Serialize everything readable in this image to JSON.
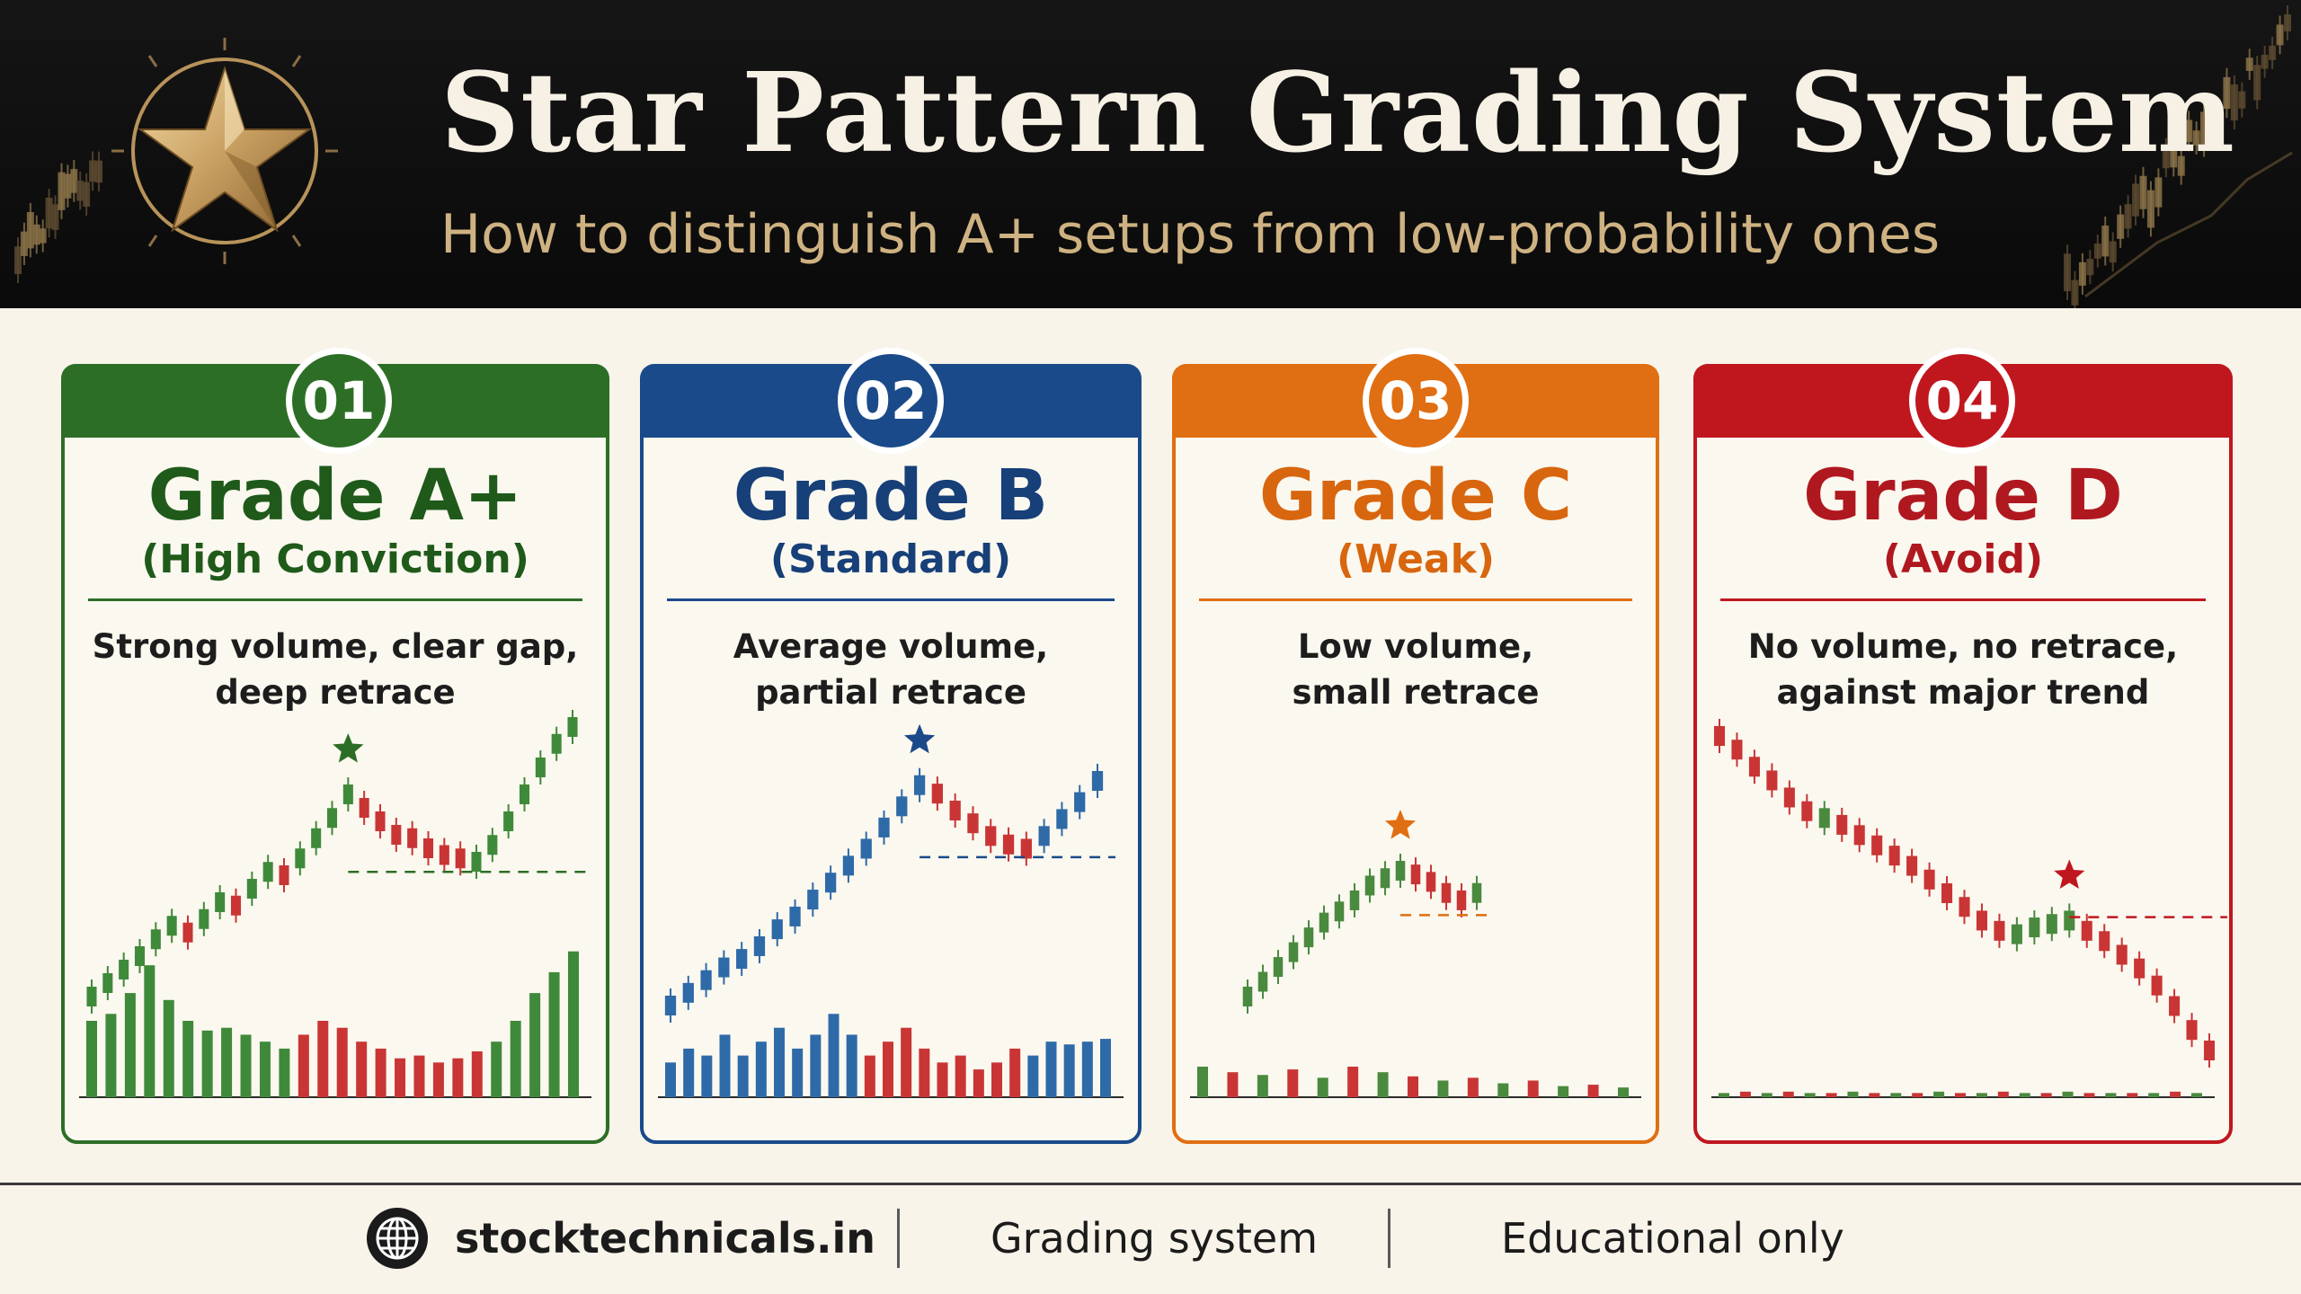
{
  "header": {
    "title": "Star Pattern Grading System",
    "subtitle": "How to distinguish A+ setups from low-probability ones",
    "emblem_icon": "gold-star-icon",
    "accent": "#cfb282"
  },
  "cards": [
    {
      "number": "01",
      "grade": "Grade A+",
      "subtitle": "(High Conviction)",
      "description": [
        "Strong volume, clear gap,",
        "deep retrace"
      ],
      "color": "#2d6e26",
      "title_color": "#1f5a1a",
      "chart": {
        "up_color": "#3f8a3a",
        "down_color": "#c93535",
        "star_color": "#2d6e26",
        "prices": [
          10,
          14,
          18,
          22,
          27,
          31,
          29,
          33,
          38,
          37,
          42,
          47,
          46,
          51,
          57,
          63,
          70,
          66,
          62,
          58,
          57,
          54,
          52,
          51,
          50,
          55,
          62,
          70,
          78,
          85,
          90
        ],
        "dirs": [
          1,
          1,
          1,
          1,
          1,
          1,
          -1,
          1,
          1,
          -1,
          1,
          1,
          -1,
          1,
          1,
          1,
          1,
          -1,
          -1,
          -1,
          -1,
          -1,
          -1,
          -1,
          1,
          1,
          1,
          1,
          1,
          1,
          1
        ],
        "star_index": 16,
        "support_level": 47,
        "volumes": [
          55,
          60,
          75,
          95,
          70,
          55,
          48,
          50,
          45,
          40,
          35,
          45,
          55,
          50,
          40,
          35,
          28,
          30,
          25,
          28,
          33,
          40,
          55,
          75,
          90,
          105
        ]
      }
    },
    {
      "number": "02",
      "grade": "Grade B",
      "subtitle": "(Standard)",
      "description": [
        "Average volume,",
        "partial retrace"
      ],
      "color": "#1a4a8a",
      "title_color": "#173f78",
      "chart": {
        "up_color": "#2e6aa8",
        "down_color": "#c93535",
        "star_color": "#1a4a8a",
        "prices": [
          10,
          13,
          16,
          19,
          21,
          24,
          28,
          31,
          35,
          39,
          43,
          47,
          52,
          57,
          62,
          60,
          56,
          53,
          50,
          48,
          47,
          50,
          54,
          58,
          63
        ],
        "dirs": [
          1,
          1,
          1,
          1,
          1,
          1,
          1,
          1,
          1,
          1,
          1,
          1,
          1,
          1,
          1,
          -1,
          -1,
          -1,
          -1,
          -1,
          -1,
          1,
          1,
          1,
          1
        ],
        "star_index": 14,
        "support_level": 45,
        "volumes": [
          25,
          35,
          30,
          45,
          30,
          40,
          50,
          35,
          45,
          60,
          45,
          30,
          40,
          50,
          35,
          25,
          30,
          20,
          25,
          35,
          30,
          40,
          38,
          40,
          42
        ]
      }
    },
    {
      "number": "03",
      "grade": "Grade C",
      "subtitle": "(Weak)",
      "description": [
        "Low volume,",
        "small retrace"
      ],
      "color": "#e06e12",
      "title_color": "#d8660f",
      "chart": {
        "up_color": "#4a8a3f",
        "down_color": "#c93535",
        "star_color": "#e06e12",
        "prices": [
          10,
          14,
          18,
          22,
          26,
          30,
          33,
          36,
          40,
          42,
          44,
          43,
          41,
          38,
          36,
          38
        ],
        "dirs": [
          1,
          1,
          1,
          1,
          1,
          1,
          1,
          1,
          1,
          1,
          1,
          -1,
          -1,
          -1,
          -1,
          1
        ],
        "star_index": 10,
        "support_level": 32,
        "volumes": [
          22,
          18,
          16,
          20,
          14,
          22,
          18,
          15,
          12,
          14,
          10,
          12,
          8,
          9,
          7
        ]
      }
    },
    {
      "number": "04",
      "grade": "Grade D",
      "subtitle": "(Avoid)",
      "description": [
        "No volume, no retrace,",
        "against major trend"
      ],
      "color": "#c0171f",
      "title_color": "#b01820",
      "chart": {
        "up_color": "#4a8a3f",
        "down_color": "#c93535",
        "star_color": "#c0171f",
        "prices": [
          100,
          96,
          91,
          87,
          82,
          78,
          76,
          74,
          71,
          68,
          65,
          62,
          58,
          54,
          50,
          46,
          43,
          42,
          44,
          45,
          46,
          43,
          40,
          36,
          32,
          27,
          21,
          14,
          8
        ],
        "dirs": [
          -1,
          -1,
          -1,
          -1,
          -1,
          -1,
          1,
          -1,
          -1,
          -1,
          -1,
          -1,
          -1,
          -1,
          -1,
          -1,
          -1,
          1,
          1,
          1,
          1,
          -1,
          -1,
          -1,
          -1,
          -1,
          -1,
          -1,
          -1
        ],
        "star_index": 20,
        "support_level": 47,
        "volumes": [
          3,
          4,
          3,
          4,
          3,
          3,
          4,
          3,
          3,
          3,
          4,
          3,
          3,
          4,
          3,
          3,
          4,
          3,
          3,
          3,
          3,
          4,
          3
        ]
      }
    }
  ],
  "footer": {
    "site": "stocktechnicals.in",
    "site_icon": "globe-icon",
    "section": "Grading system",
    "note": "Educational only"
  }
}
